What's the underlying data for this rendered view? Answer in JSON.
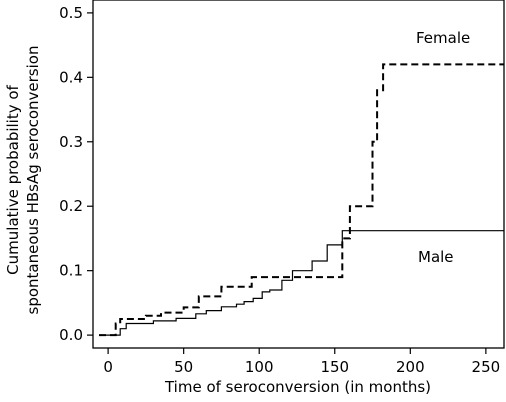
{
  "chart_data": {
    "type": "line",
    "xlabel": "Time of seroconversion (in months)",
    "ylabel_lines": [
      "Cumulative probability of",
      "spontaneous HBsAg seroconversion"
    ],
    "xlim": [
      -10,
      262
    ],
    "ylim": [
      -0.02,
      0.52
    ],
    "x_ticks": [
      0,
      50,
      100,
      150,
      200,
      250
    ],
    "y_ticks": [
      0.0,
      0.1,
      0.2,
      0.3,
      0.4,
      0.5
    ],
    "y_tick_labels": [
      "0.0",
      "0.1",
      "0.2",
      "0.3",
      "0.4",
      "0.5"
    ],
    "grid": false,
    "series": [
      {
        "name": "Male",
        "style": "solid",
        "color": "#000000",
        "x": [
          -6,
          4,
          8,
          12,
          30,
          45,
          58,
          65,
          75,
          85,
          90,
          96,
          102,
          107,
          115,
          122,
          135,
          145,
          155,
          262
        ],
        "y": [
          0.0,
          0.0,
          0.01,
          0.018,
          0.022,
          0.026,
          0.033,
          0.038,
          0.044,
          0.048,
          0.052,
          0.057,
          0.067,
          0.07,
          0.085,
          0.1,
          0.115,
          0.14,
          0.162,
          0.162
        ]
      },
      {
        "name": "Female",
        "style": "dashed",
        "color": "#000000",
        "x": [
          -6,
          2,
          5,
          8,
          25,
          35,
          50,
          60,
          75,
          95,
          125,
          150,
          155,
          160,
          170,
          175,
          178,
          182,
          262
        ],
        "y": [
          0.0,
          0.0,
          0.018,
          0.025,
          0.03,
          0.035,
          0.043,
          0.06,
          0.075,
          0.09,
          0.09,
          0.09,
          0.15,
          0.2,
          0.2,
          0.3,
          0.38,
          0.42,
          0.42
        ]
      }
    ]
  }
}
